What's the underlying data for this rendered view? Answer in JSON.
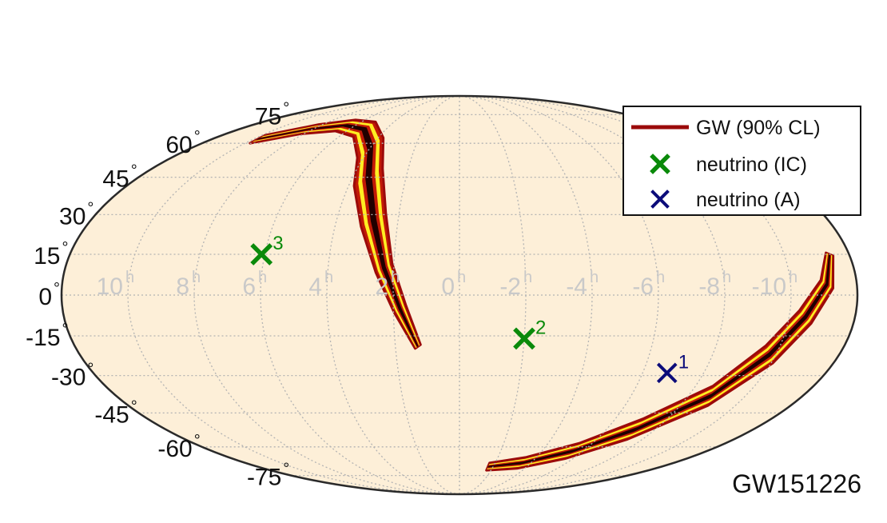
{
  "chart_data": {
    "type": "scatter",
    "projection": "mollweide",
    "title": "",
    "event_label": "GW151226",
    "grid": true,
    "legend_position": "top-right",
    "colors": {
      "background": "#ffffff",
      "sky_fill": "#fdefd8",
      "grid": "#b3b3b3",
      "contour": "#9b0a0a",
      "region_dark": "#200000",
      "region_mid": "#c21a06",
      "region_bright": "#ffee22",
      "neutrino_ic": "#0a8a0a",
      "neutrino_a": "#0c0c7a",
      "ra_label": "#c9c9c9"
    },
    "lat_ticks": [
      {
        "text": "75",
        "deg": "°",
        "value": 75
      },
      {
        "text": "60",
        "deg": "°",
        "value": 60
      },
      {
        "text": "45",
        "deg": "°",
        "value": 45
      },
      {
        "text": "30",
        "deg": "°",
        "value": 30
      },
      {
        "text": "15",
        "deg": "°",
        "value": 15
      },
      {
        "text": "0",
        "deg": "°",
        "value": 0
      },
      {
        "text": "-15",
        "deg": "°",
        "value": -15
      },
      {
        "text": "-30",
        "deg": "°",
        "value": -30
      },
      {
        "text": "-45",
        "deg": "°",
        "value": -45
      },
      {
        "text": "-60",
        "deg": "°",
        "value": -60
      },
      {
        "text": "-75",
        "deg": "°",
        "value": -75
      }
    ],
    "ra_ticks": [
      {
        "text": "10",
        "sup": "h",
        "hours": 10
      },
      {
        "text": "8",
        "sup": "h",
        "hours": 8
      },
      {
        "text": "6",
        "sup": "h",
        "hours": 6
      },
      {
        "text": "4",
        "sup": "h",
        "hours": 4
      },
      {
        "text": "2",
        "sup": "h",
        "hours": 2
      },
      {
        "text": "0",
        "sup": "h",
        "hours": 0
      },
      {
        "text": "-2",
        "sup": "h",
        "hours": -2
      },
      {
        "text": "-4",
        "sup": "h",
        "hours": -4
      },
      {
        "text": "-6",
        "sup": "h",
        "hours": -6
      },
      {
        "text": "-8",
        "sup": "h",
        "hours": -8
      },
      {
        "text": "-10",
        "sup": "h",
        "hours": -10
      }
    ],
    "series": [
      {
        "name": "GW (90% CL)",
        "kind": "credible-region",
        "regions": [
          {
            "spine": [
              {
                "ra": 9.8,
                "dec": 62
              },
              {
                "ra": 8.2,
                "dec": 67
              },
              {
                "ra": 6.6,
                "dec": 69
              },
              {
                "ra": 5.2,
                "dec": 67
              },
              {
                "ra": 4.0,
                "dec": 58
              },
              {
                "ra": 3.4,
                "dec": 45
              },
              {
                "ra": 2.8,
                "dec": 28
              },
              {
                "ra": 2.3,
                "dec": 10
              },
              {
                "ra": 1.8,
                "dec": -5
              },
              {
                "ra": 1.3,
                "dec": -19
              }
            ],
            "width_deg": [
              2,
              2.5,
              3,
              4,
              6,
              7,
              6,
              4,
              3,
              1.5
            ]
          },
          {
            "spine": [
              {
                "ra": -1.7,
                "dec": -70
              },
              {
                "ra": -3.5,
                "dec": -68
              },
              {
                "ra": -5.5,
                "dec": -62
              },
              {
                "ra": -7.2,
                "dec": -52
              },
              {
                "ra": -8.8,
                "dec": -38
              },
              {
                "ra": -9.8,
                "dec": -22
              },
              {
                "ra": -10.5,
                "dec": -8
              },
              {
                "ra": -11.1,
                "dec": 4
              },
              {
                "ra": -11.4,
                "dec": 15
              }
            ],
            "width_deg": [
              2,
              3,
              4,
              5,
              5,
              5,
              4,
              3,
              1.5
            ]
          }
        ]
      },
      {
        "name": "neutrino (IC)",
        "kind": "marker",
        "points": [
          {
            "label": "3",
            "ra": 6.1,
            "dec": 15
          },
          {
            "label": "2",
            "ra": -2.0,
            "dec": -16
          }
        ]
      },
      {
        "name": "neutrino (A)",
        "kind": "marker",
        "points": [
          {
            "label": "1",
            "ra": -6.8,
            "dec": -29
          }
        ]
      }
    ]
  }
}
